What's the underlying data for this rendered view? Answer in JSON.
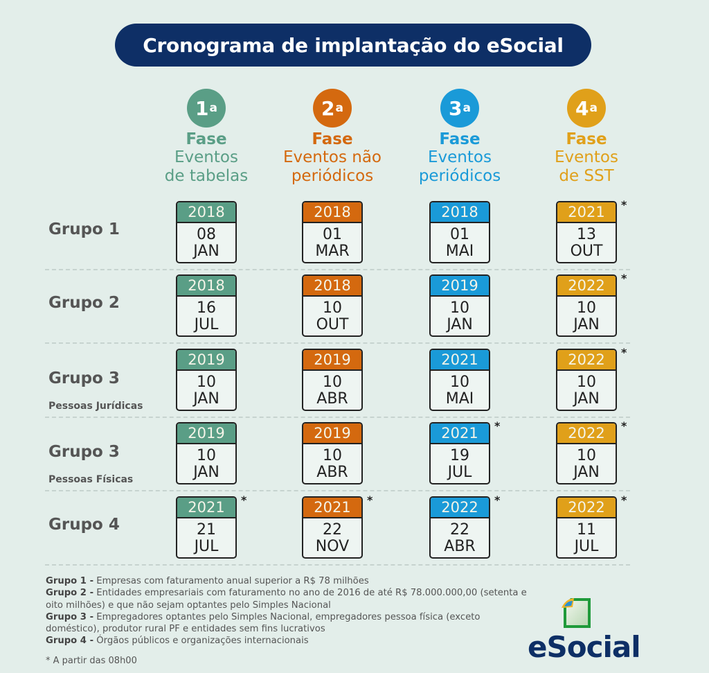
{
  "title": "Cronograma de implantação do eSocial",
  "colors": {
    "background": "#e3eeea",
    "title_bg": "#0e2f66",
    "fase1": "#5a9e86",
    "fase2": "#d4690f",
    "fase3": "#1a9ad8",
    "fase4": "#e0a01a"
  },
  "phases": [
    {
      "number": "1",
      "ordinal": "a",
      "label": "Fase",
      "desc1": "Eventos",
      "desc2": "de tabelas"
    },
    {
      "number": "2",
      "ordinal": "a",
      "label": "Fase",
      "desc1": "Eventos não",
      "desc2": "periódicos"
    },
    {
      "number": "3",
      "ordinal": "a",
      "label": "Fase",
      "desc1": "Eventos",
      "desc2": "periódicos"
    },
    {
      "number": "4",
      "ordinal": "a",
      "label": "Fase",
      "desc1": "Eventos",
      "desc2": "de SST"
    }
  ],
  "groups": [
    {
      "label": "Grupo 1",
      "sub": "",
      "dates": [
        {
          "year": "2018",
          "day": "08",
          "month": "JAN",
          "star": ""
        },
        {
          "year": "2018",
          "day": "01",
          "month": "MAR",
          "star": ""
        },
        {
          "year": "2018",
          "day": "01",
          "month": "MAI",
          "star": ""
        },
        {
          "year": "2021",
          "day": "13",
          "month": "OUT",
          "star": "*"
        }
      ]
    },
    {
      "label": "Grupo 2",
      "sub": "",
      "dates": [
        {
          "year": "2018",
          "day": "16",
          "month": "JUL",
          "star": ""
        },
        {
          "year": "2018",
          "day": "10",
          "month": "OUT",
          "star": ""
        },
        {
          "year": "2019",
          "day": "10",
          "month": "JAN",
          "star": ""
        },
        {
          "year": "2022",
          "day": "10",
          "month": "JAN",
          "star": "*"
        }
      ]
    },
    {
      "label": "Grupo 3",
      "sub": "Pessoas Jurídicas",
      "dates": [
        {
          "year": "2019",
          "day": "10",
          "month": "JAN",
          "star": ""
        },
        {
          "year": "2019",
          "day": "10",
          "month": "ABR",
          "star": ""
        },
        {
          "year": "2021",
          "day": "10",
          "month": "MAI",
          "star": ""
        },
        {
          "year": "2022",
          "day": "10",
          "month": "JAN",
          "star": "*"
        }
      ]
    },
    {
      "label": "Grupo 3",
      "sub": "Pessoas Físicas",
      "dates": [
        {
          "year": "2019",
          "day": "10",
          "month": "JAN",
          "star": ""
        },
        {
          "year": "2019",
          "day": "10",
          "month": "ABR",
          "star": ""
        },
        {
          "year": "2021",
          "day": "19",
          "month": "JUL",
          "star": "*"
        },
        {
          "year": "2022",
          "day": "10",
          "month": "JAN",
          "star": "*"
        }
      ]
    },
    {
      "label": "Grupo 4",
      "sub": "",
      "dates": [
        {
          "year": "2021",
          "day": "21",
          "month": "JUL",
          "star": "*"
        },
        {
          "year": "2021",
          "day": "22",
          "month": "NOV",
          "star": "*"
        },
        {
          "year": "2022",
          "day": "22",
          "month": "ABR",
          "star": "*"
        },
        {
          "year": "2022",
          "day": "11",
          "month": "JUL",
          "star": "*"
        }
      ]
    }
  ],
  "notes": [
    {
      "bold": "Grupo 1 -",
      "text": " Empresas com faturamento anual superior a R$ 78 milhões"
    },
    {
      "bold": "Grupo 2 -",
      "text": " Entidades empresariais com faturamento no ano de 2016 de até R$ 78.000.000,00 (setenta e oito milhões) e que não sejam optantes pelo Simples Nacional"
    },
    {
      "bold": "Grupo 3 -",
      "text": " Empregadores optantes pelo Simples Nacional, empregadores pessoa física (exceto doméstico), produtor rural PF e entidades sem fins lucrativos"
    },
    {
      "bold": "Grupo 4 -",
      "text": " Órgãos públicos e organizações internacionais"
    }
  ],
  "footnote": "* A partir das 08h00",
  "logo": {
    "text": "eSocial"
  }
}
